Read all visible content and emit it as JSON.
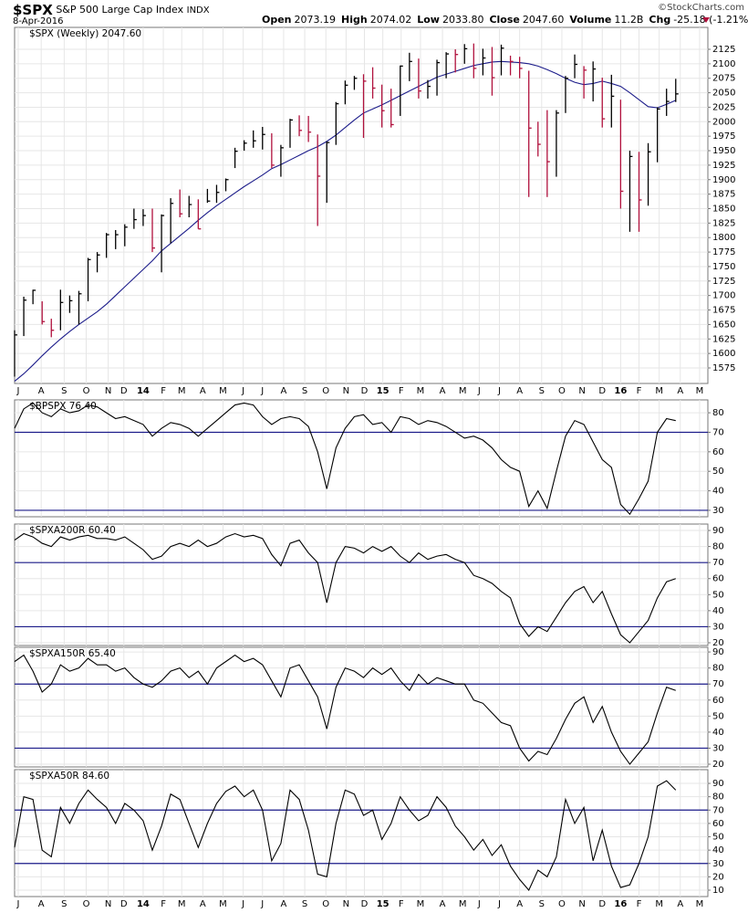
{
  "header": {
    "symbol": "$SPX",
    "name": "S&P 500 Large Cap Index",
    "exchange": "INDX",
    "date": "8-Apr-2016",
    "credit": "©StockCharts.com",
    "quote": [
      {
        "label": "Open",
        "value": "2073.19"
      },
      {
        "label": "High",
        "value": "2074.02"
      },
      {
        "label": "Low",
        "value": "2033.80"
      },
      {
        "label": "Close",
        "value": "2047.60"
      },
      {
        "label": "Volume",
        "value": "11.2B"
      },
      {
        "label": "Chg",
        "value": "-25.18 (-1.21%)"
      }
    ]
  },
  "chart_data": [
    {
      "type": "ohlc",
      "title": "$SPX (Weekly) 2047.60",
      "up_color": "#000000",
      "down_color": "#b0103c",
      "ma_color": "#1c1c8a",
      "grid": true,
      "xlim": [
        0,
        75.5
      ],
      "xticks": [
        {
          "value": 0.4,
          "label": "J"
        },
        {
          "value": 2.9,
          "label": "A"
        },
        {
          "value": 5.4,
          "label": "S"
        },
        {
          "value": 7.8,
          "label": "O"
        },
        {
          "value": 10.2,
          "label": "N"
        },
        {
          "value": 11.9,
          "label": "D"
        },
        {
          "value": 14.0,
          "label": "14"
        },
        {
          "value": 16.2,
          "label": "F"
        },
        {
          "value": 18.2,
          "label": "M"
        },
        {
          "value": 20.5,
          "label": "A"
        },
        {
          "value": 22.7,
          "label": "M"
        },
        {
          "value": 24.9,
          "label": "J"
        },
        {
          "value": 27.0,
          "label": "J"
        },
        {
          "value": 29.3,
          "label": "A"
        },
        {
          "value": 31.6,
          "label": "S"
        },
        {
          "value": 33.9,
          "label": "O"
        },
        {
          "value": 36.1,
          "label": "N"
        },
        {
          "value": 38.1,
          "label": "D"
        },
        {
          "value": 40.1,
          "label": "15"
        },
        {
          "value": 42.1,
          "label": "F"
        },
        {
          "value": 44.2,
          "label": "M"
        },
        {
          "value": 46.6,
          "label": "A"
        },
        {
          "value": 48.8,
          "label": "M"
        },
        {
          "value": 50.6,
          "label": "J"
        },
        {
          "value": 52.8,
          "label": "J"
        },
        {
          "value": 55.0,
          "label": "A"
        },
        {
          "value": 57.4,
          "label": "S"
        },
        {
          "value": 59.6,
          "label": "O"
        },
        {
          "value": 61.8,
          "label": "N"
        },
        {
          "value": 64.0,
          "label": "D"
        },
        {
          "value": 66.0,
          "label": "16"
        },
        {
          "value": 68.0,
          "label": "F"
        },
        {
          "value": 70.2,
          "label": "M"
        },
        {
          "value": 72.5,
          "label": "A"
        },
        {
          "value": 74.6,
          "label": "M"
        }
      ],
      "ylim": [
        1548.2,
        2162.8
      ],
      "yticks": [
        1575,
        1600,
        1625,
        1650,
        1675,
        1700,
        1725,
        1750,
        1775,
        1800,
        1825,
        1850,
        1875,
        1900,
        1925,
        1950,
        1975,
        2000,
        2025,
        2050,
        2075,
        2100,
        2125
      ],
      "high": [
        1640,
        1698,
        1710,
        1690,
        1660,
        1710,
        1700,
        1708,
        1765,
        1775,
        1808,
        1813,
        1823,
        1850,
        1849,
        1850,
        1840,
        1868,
        1883,
        1872,
        1866,
        1884,
        1891,
        1902,
        1955,
        1968,
        1985,
        1991,
        1980,
        1960,
        2005,
        2011,
        2010,
        1978,
        1966,
        2034,
        2071,
        2079,
        2082,
        2094,
        2064,
        2057,
        2097,
        2119,
        2109,
        2072,
        2107,
        2120,
        2125,
        2134,
        2135,
        2126,
        2129,
        2133,
        2114,
        2112,
        2088,
        2000,
        2020,
        2020,
        2079,
        2116,
        2096,
        2104,
        2076,
        2081,
        2038,
        1950,
        1948,
        1963,
        2025,
        2057,
        2074
      ],
      "low": [
        1560,
        1630,
        1685,
        1650,
        1628,
        1640,
        1670,
        1650,
        1690,
        1740,
        1765,
        1780,
        1785,
        1815,
        1820,
        1775,
        1740,
        1790,
        1835,
        1835,
        1815,
        1860,
        1860,
        1880,
        1920,
        1950,
        1955,
        1952,
        1920,
        1905,
        1955,
        1975,
        1965,
        1820,
        1860,
        1960,
        2030,
        2055,
        1972,
        2040,
        1990,
        1990,
        2010,
        2070,
        2040,
        2040,
        2045,
        2075,
        2085,
        2100,
        2075,
        2080,
        2045,
        2080,
        2080,
        2075,
        1870,
        1940,
        1870,
        1905,
        2015,
        2075,
        2040,
        2035,
        1990,
        1990,
        1850,
        1810,
        1810,
        1855,
        1930,
        2010,
        2034
      ],
      "close": [
        1632,
        1692,
        1709,
        1655,
        1640,
        1688,
        1691,
        1703,
        1762,
        1770,
        1805,
        1805,
        1818,
        1831,
        1838,
        1782,
        1838,
        1859,
        1841,
        1857,
        1815,
        1863,
        1878,
        1900,
        1949,
        1963,
        1967,
        1978,
        1925,
        1955,
        2003,
        1985,
        1982,
        1906,
        1964,
        2031,
        2063,
        2075,
        2070,
        2058,
        2019,
        1995,
        2096,
        2104,
        2053,
        2061,
        2102,
        2117,
        2116,
        2126,
        2092,
        2110,
        2076,
        2127,
        2104,
        2092,
        1989,
        1961,
        1931,
        2015,
        2075,
        2099,
        2089,
        2091,
        2005,
        2044,
        1880,
        1940,
        1865,
        1948,
        2022,
        2035,
        2048
      ],
      "ma": [
        1552,
        1565,
        1580,
        1596,
        1611,
        1625,
        1638,
        1650,
        1661,
        1672,
        1685,
        1700,
        1715,
        1730,
        1745,
        1760,
        1777,
        1790,
        1803,
        1816,
        1830,
        1843,
        1855,
        1866,
        1877,
        1888,
        1898,
        1908,
        1919,
        1926,
        1934,
        1942,
        1950,
        1957,
        1966,
        1977,
        1990,
        2003,
        2015,
        2022,
        2029,
        2037,
        2045,
        2053,
        2061,
        2069,
        2077,
        2082,
        2087,
        2092,
        2097,
        2100,
        2103,
        2104,
        2103,
        2102,
        2100,
        2096,
        2090,
        2083,
        2075,
        2068,
        2064,
        2066,
        2070,
        2066,
        2061,
        2050,
        2038,
        2026,
        2024,
        2030,
        2037
      ]
    },
    {
      "type": "line",
      "title": "$BPSPX 76.40",
      "color": "#000000",
      "hline_color": "#1c1c8a",
      "grid": true,
      "ylim": [
        26.7,
        86.6
      ],
      "yticks": [
        30,
        40,
        50,
        60,
        70,
        80
      ],
      "hlines": [
        70,
        30
      ],
      "values": [
        72,
        82,
        85,
        80,
        78,
        82,
        80,
        81,
        84,
        83,
        80,
        77,
        78,
        76,
        74,
        68,
        72,
        75,
        74,
        72,
        68,
        72,
        76,
        80,
        84,
        85,
        84,
        78,
        74,
        77,
        78,
        77,
        73,
        60,
        41,
        62,
        72,
        78,
        79,
        74,
        75,
        70,
        78,
        77,
        74,
        76,
        75,
        73,
        70,
        67,
        68,
        66,
        62,
        56,
        52,
        50,
        32,
        40,
        31,
        50,
        68,
        76,
        74,
        65,
        56,
        52,
        33,
        28,
        36,
        45,
        70,
        77,
        76
      ]
    },
    {
      "type": "line",
      "title": "$SPXA200R 60.40",
      "color": "#000000",
      "hline_color": "#1c1c8a",
      "grid": true,
      "ylim": [
        18.3,
        94
      ],
      "yticks": [
        20,
        30,
        40,
        50,
        60,
        70,
        80,
        90
      ],
      "hlines": [
        70,
        30
      ],
      "values": [
        84,
        88,
        86,
        82,
        80,
        86,
        84,
        86,
        87,
        85,
        85,
        84,
        86,
        82,
        78,
        72,
        74,
        80,
        82,
        80,
        84,
        80,
        82,
        86,
        88,
        86,
        87,
        85,
        75,
        68,
        82,
        84,
        76,
        70,
        45,
        70,
        80,
        79,
        76,
        80,
        77,
        80,
        74,
        70,
        76,
        72,
        74,
        75,
        72,
        70,
        62,
        60,
        57,
        52,
        48,
        32,
        24,
        30,
        27,
        36,
        45,
        52,
        55,
        45,
        52,
        38,
        25,
        20,
        27,
        34,
        48,
        58,
        60
      ]
    },
    {
      "type": "line",
      "title": "$SPXA150R 65.40",
      "color": "#000000",
      "hline_color": "#1c1c8a",
      "grid": true,
      "ylim": [
        18.3,
        92.9
      ],
      "yticks": [
        20,
        30,
        40,
        50,
        60,
        70,
        80,
        90
      ],
      "hlines": [
        70,
        30
      ],
      "values": [
        84,
        88,
        78,
        65,
        70,
        82,
        78,
        80,
        86,
        82,
        82,
        78,
        80,
        74,
        70,
        68,
        72,
        78,
        80,
        74,
        78,
        70,
        80,
        84,
        88,
        84,
        86,
        82,
        72,
        62,
        80,
        82,
        72,
        62,
        42,
        68,
        80,
        78,
        74,
        80,
        76,
        80,
        72,
        66,
        76,
        70,
        74,
        72,
        70,
        70,
        60,
        58,
        52,
        46,
        44,
        30,
        22,
        28,
        26,
        36,
        48,
        58,
        62,
        46,
        56,
        40,
        28,
        20,
        27,
        34,
        52,
        68,
        66
      ]
    },
    {
      "type": "line",
      "title": "$SPXA50R 84.60",
      "color": "#000000",
      "hline_color": "#1c1c8a",
      "grid": true,
      "ylim": [
        5.2,
        100.3
      ],
      "yticks": [
        10,
        20,
        30,
        40,
        50,
        60,
        70,
        80,
        90
      ],
      "hlines": [
        70,
        30
      ],
      "values": [
        42,
        80,
        78,
        40,
        35,
        72,
        60,
        75,
        85,
        78,
        72,
        60,
        75,
        70,
        62,
        40,
        58,
        82,
        78,
        60,
        42,
        60,
        75,
        84,
        88,
        80,
        85,
        70,
        32,
        45,
        85,
        78,
        55,
        22,
        20,
        60,
        85,
        82,
        66,
        70,
        48,
        60,
        80,
        70,
        62,
        66,
        80,
        72,
        58,
        50,
        40,
        48,
        36,
        44,
        28,
        18,
        10,
        25,
        20,
        35,
        78,
        60,
        72,
        32,
        55,
        28,
        12,
        14,
        30,
        50,
        88,
        92,
        85
      ]
    }
  ]
}
